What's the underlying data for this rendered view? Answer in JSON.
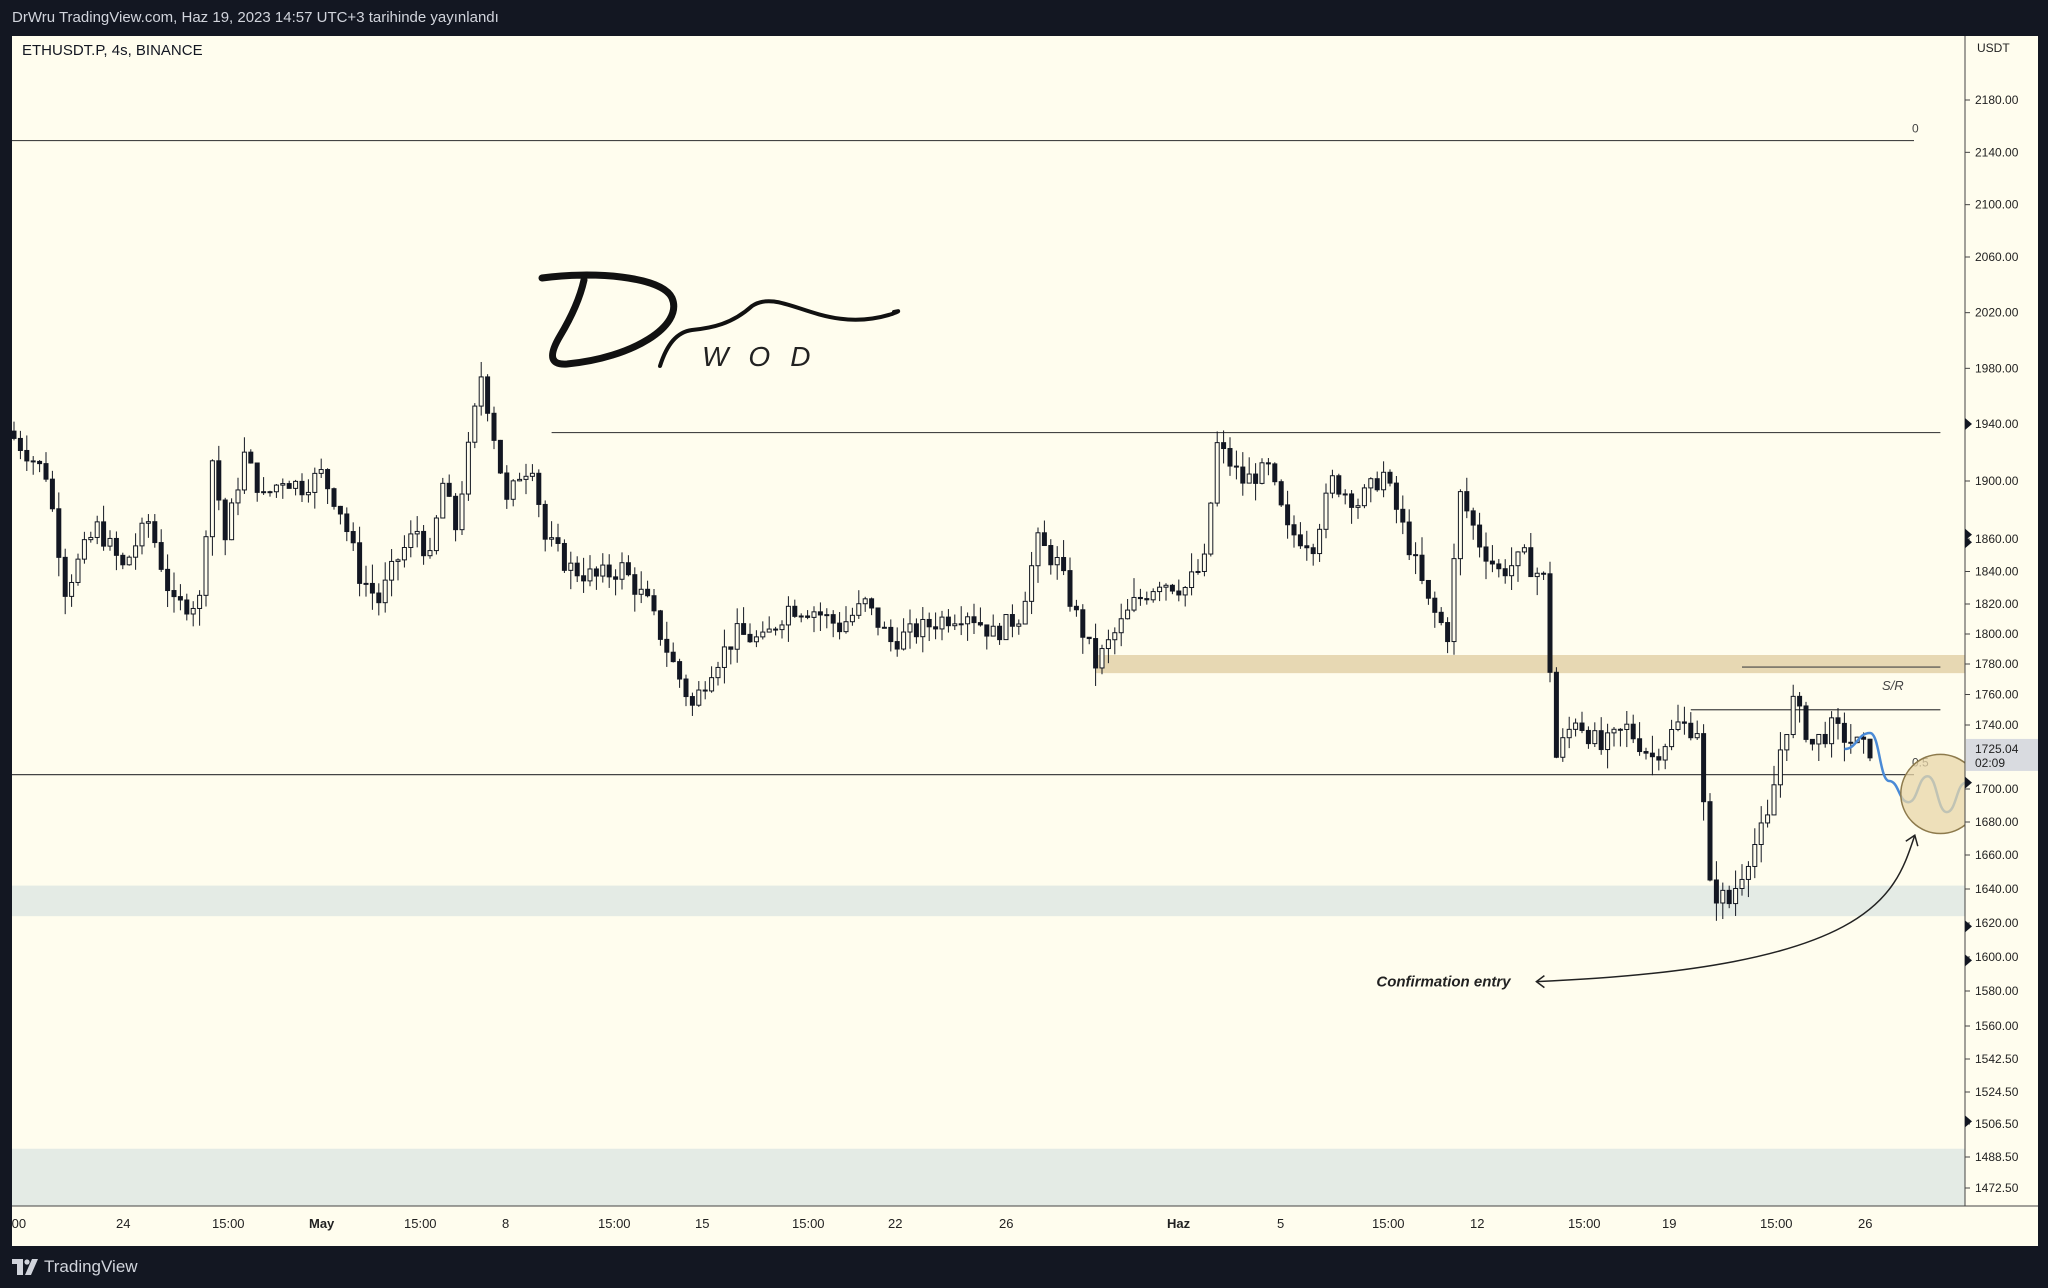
{
  "header": {
    "publish_line": "DrWru TradingView.com, Haz 19, 2023 14:57 UTC+3 tarihinde yayınlandı"
  },
  "symbol_line": "ETHUSDT.P, 4s, BINANCE",
  "footer": {
    "brand": "TradingView"
  },
  "watermark": {
    "signature": "Dr",
    "subtext": "WOD"
  },
  "colors": {
    "background": "#fffdee",
    "candle": "#131722",
    "sr_zone": "#e7d8b3",
    "demand_zone": "#e4ebe5",
    "projection": "#4a8ad6",
    "circle_fill": "#e8d6a8"
  },
  "chart_data": {
    "type": "candlestick",
    "symbol": "ETHUSDT.P",
    "interval": "4s",
    "exchange": "BINANCE",
    "price_axis": {
      "unit": "USDT",
      "ticks": [
        "2180.00",
        "2140.00",
        "2100.00",
        "2060.00",
        "2020.00",
        "1980.00",
        "1940.00",
        "1900.00",
        "1860.00",
        "1840.00",
        "1820.00",
        "1800.00",
        "1780.00",
        "1760.00",
        "1740.00",
        "1700.00",
        "1680.00",
        "1660.00",
        "1640.00",
        "1620.00",
        "1600.00",
        "1580.00",
        "1560.00",
        "1542.50",
        "1524.50",
        "1506.50",
        "1488.50",
        "1472.50"
      ],
      "last_price": "1725.04",
      "countdown": "02:09"
    },
    "time_axis": {
      "labels": [
        ":00",
        "24",
        "15:00",
        "May",
        "15:00",
        "8",
        "15:00",
        "15",
        "15:00",
        "22",
        "26",
        "Haz",
        "5",
        "15:00",
        "12",
        "15:00",
        "19",
        "15:00",
        "26"
      ]
    },
    "path_points": [
      {
        "i": 0,
        "p": 1935
      },
      {
        "i": 6,
        "p": 1905
      },
      {
        "i": 9,
        "p": 1830
      },
      {
        "i": 14,
        "p": 1868
      },
      {
        "i": 18,
        "p": 1842
      },
      {
        "i": 22,
        "p": 1872
      },
      {
        "i": 26,
        "p": 1818
      },
      {
        "i": 30,
        "p": 1822
      },
      {
        "i": 32,
        "p": 1915
      },
      {
        "i": 34,
        "p": 1860
      },
      {
        "i": 37,
        "p": 1918
      },
      {
        "i": 40,
        "p": 1888
      },
      {
        "i": 43,
        "p": 1902
      },
      {
        "i": 46,
        "p": 1896
      },
      {
        "i": 49,
        "p": 1905
      },
      {
        "i": 52,
        "p": 1880
      },
      {
        "i": 55,
        "p": 1838
      },
      {
        "i": 58,
        "p": 1822
      },
      {
        "i": 61,
        "p": 1848
      },
      {
        "i": 64,
        "p": 1866
      },
      {
        "i": 66,
        "p": 1846
      },
      {
        "i": 68,
        "p": 1898
      },
      {
        "i": 70,
        "p": 1868
      },
      {
        "i": 74,
        "p": 1975
      },
      {
        "i": 76,
        "p": 1932
      },
      {
        "i": 78,
        "p": 1884
      },
      {
        "i": 80,
        "p": 1905
      },
      {
        "i": 82,
        "p": 1912
      },
      {
        "i": 84,
        "p": 1860
      },
      {
        "i": 88,
        "p": 1842
      },
      {
        "i": 92,
        "p": 1836
      },
      {
        "i": 96,
        "p": 1842
      },
      {
        "i": 100,
        "p": 1820
      },
      {
        "i": 104,
        "p": 1780
      },
      {
        "i": 107,
        "p": 1752
      },
      {
        "i": 110,
        "p": 1778
      },
      {
        "i": 114,
        "p": 1800
      },
      {
        "i": 118,
        "p": 1795
      },
      {
        "i": 122,
        "p": 1818
      },
      {
        "i": 126,
        "p": 1816
      },
      {
        "i": 130,
        "p": 1805
      },
      {
        "i": 134,
        "p": 1820
      },
      {
        "i": 138,
        "p": 1795
      },
      {
        "i": 142,
        "p": 1802
      },
      {
        "i": 146,
        "p": 1810
      },
      {
        "i": 150,
        "p": 1815
      },
      {
        "i": 154,
        "p": 1800
      },
      {
        "i": 158,
        "p": 1812
      },
      {
        "i": 161,
        "p": 1858
      },
      {
        "i": 164,
        "p": 1845
      },
      {
        "i": 167,
        "p": 1812
      },
      {
        "i": 170,
        "p": 1780
      },
      {
        "i": 173,
        "p": 1800
      },
      {
        "i": 176,
        "p": 1820
      },
      {
        "i": 180,
        "p": 1835
      },
      {
        "i": 184,
        "p": 1830
      },
      {
        "i": 187,
        "p": 1845
      },
      {
        "i": 189,
        "p": 1925
      },
      {
        "i": 193,
        "p": 1900
      },
      {
        "i": 197,
        "p": 1908
      },
      {
        "i": 200,
        "p": 1865
      },
      {
        "i": 204,
        "p": 1858
      },
      {
        "i": 207,
        "p": 1900
      },
      {
        "i": 211,
        "p": 1885
      },
      {
        "i": 215,
        "p": 1905
      },
      {
        "i": 218,
        "p": 1868
      },
      {
        "i": 222,
        "p": 1820
      },
      {
        "i": 225,
        "p": 1800
      },
      {
        "i": 227,
        "p": 1890
      },
      {
        "i": 230,
        "p": 1858
      },
      {
        "i": 233,
        "p": 1840
      },
      {
        "i": 237,
        "p": 1848
      },
      {
        "i": 240,
        "p": 1835
      },
      {
        "i": 242,
        "p": 1720
      },
      {
        "i": 245,
        "p": 1745
      },
      {
        "i": 249,
        "p": 1725
      },
      {
        "i": 253,
        "p": 1738
      },
      {
        "i": 257,
        "p": 1720
      },
      {
        "i": 261,
        "p": 1740
      },
      {
        "i": 264,
        "p": 1738
      },
      {
        "i": 266,
        "p": 1640
      },
      {
        "i": 269,
        "p": 1632
      },
      {
        "i": 272,
        "p": 1660
      },
      {
        "i": 275,
        "p": 1680
      },
      {
        "i": 277,
        "p": 1725
      },
      {
        "i": 279,
        "p": 1755
      },
      {
        "i": 282,
        "p": 1728
      },
      {
        "i": 285,
        "p": 1738
      },
      {
        "i": 288,
        "p": 1730
      },
      {
        "i": 290,
        "p": 1725
      }
    ],
    "bars_count": 291,
    "horizontal_levels": [
      {
        "price": 2149,
        "label": "0"
      },
      {
        "price": 1709,
        "label": "0.5"
      },
      {
        "price": 1934,
        "from": 84,
        "to": 301
      },
      {
        "price": 1778,
        "from": 270,
        "to": 301
      },
      {
        "price": 1750,
        "from": 262,
        "to": 301
      }
    ],
    "zones": [
      {
        "name": "S/R",
        "from_price": 1774,
        "to_price": 1786,
        "from": 169,
        "to": 325,
        "label": "S/R"
      },
      {
        "name": "demand-1",
        "from_price": 1624,
        "to_price": 1642,
        "from": -2,
        "to": 325
      },
      {
        "name": "demand-2",
        "from_price": 1462,
        "to_price": 1493,
        "from": -2,
        "to": 325
      }
    ],
    "projection_path": [
      {
        "i": 286,
        "p": 1725
      },
      {
        "i": 290,
        "p": 1735
      },
      {
        "i": 293,
        "p": 1705
      },
      {
        "i": 296,
        "p": 1692
      },
      {
        "i": 299,
        "p": 1708
      },
      {
        "i": 302,
        "p": 1686
      },
      {
        "i": 305,
        "p": 1704
      },
      {
        "i": 307,
        "p": 1748
      },
      {
        "i": 310,
        "p": 1736
      },
      {
        "i": 312,
        "p": 1750
      },
      {
        "i": 313,
        "p": 1785
      },
      {
        "i": 315,
        "p": 1795
      },
      {
        "i": 318,
        "p": 1778
      }
    ],
    "entry_circle": {
      "i": 301,
      "p": 1697,
      "radius_price": 24
    },
    "annotation": {
      "text": "Confirmation entry",
      "target_i": 297,
      "target_p": 1672,
      "text_i": 236,
      "text_p": 1582
    }
  }
}
